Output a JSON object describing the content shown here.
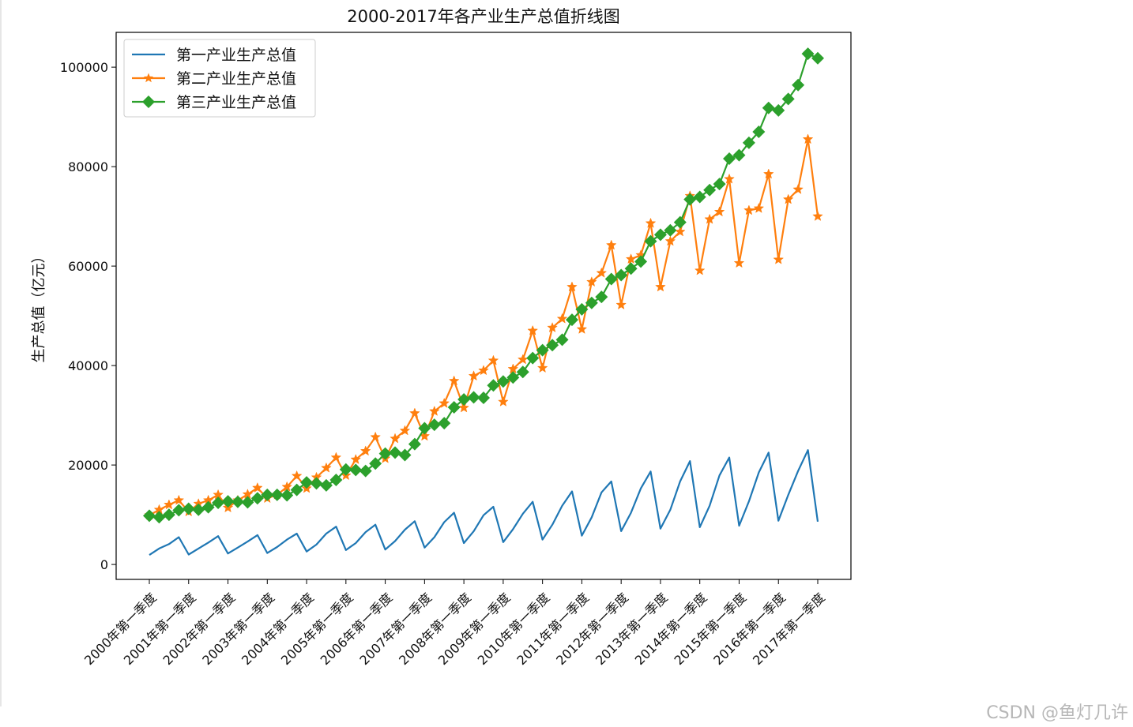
{
  "chart_data": {
    "type": "line",
    "title": "2000-2017年各产业生产总值折线图",
    "xlabel": "",
    "ylabel": "生产总值（亿元）",
    "ylim": [
      -3000,
      107000
    ],
    "yticks": [
      0,
      20000,
      40000,
      60000,
      80000,
      100000
    ],
    "grid": false,
    "legend_position": "top-left",
    "x_tick_labels": [
      "2000年第一季度",
      "2001年第一季度",
      "2002年第一季度",
      "2003年第一季度",
      "2004年第一季度",
      "2005年第一季度",
      "2006年第一季度",
      "2007年第一季度",
      "2008年第一季度",
      "2009年第一季度",
      "2010年第一季度",
      "2011年第一季度",
      "2012年第一季度",
      "2013年第一季度",
      "2014年第一季度",
      "2015年第一季度",
      "2016年第一季度",
      "2017年第一季度"
    ],
    "series": [
      {
        "name": "第一产业生产总值",
        "color": "#1f77b4",
        "marker": "none",
        "values": [
          1900,
          3200,
          4100,
          5500,
          2000,
          3200,
          4400,
          5700,
          2200,
          3400,
          4600,
          5900,
          2300,
          3500,
          5000,
          6200,
          2600,
          4000,
          6200,
          7600,
          2900,
          4300,
          6500,
          8000,
          3000,
          4700,
          7000,
          8700,
          3400,
          5500,
          8500,
          10400,
          4300,
          6700,
          9900,
          11600,
          4500,
          7100,
          10200,
          12600,
          5000,
          8000,
          11800,
          14700,
          5800,
          9500,
          14500,
          16700,
          6700,
          10400,
          15300,
          18700,
          7200,
          11000,
          16700,
          20800,
          7500,
          11800,
          17900,
          21500,
          7800,
          12700,
          18500,
          22500,
          8800,
          14000,
          18800,
          23000,
          8600
        ]
      },
      {
        "name": "第二产业生产总值",
        "color": "#ff7f0e",
        "marker": "star",
        "values": [
          9900,
          11000,
          12000,
          12900,
          10600,
          12200,
          12900,
          14000,
          11400,
          12900,
          14100,
          15400,
          13300,
          14000,
          15600,
          17800,
          15300,
          17500,
          19400,
          21500,
          17900,
          21100,
          22800,
          25600,
          21300,
          25300,
          26900,
          30400,
          25800,
          30800,
          32400,
          36900,
          31500,
          37900,
          39000,
          41000,
          32700,
          39300,
          41200,
          47000,
          39500,
          47600,
          49400,
          55800,
          47300,
          56800,
          58600,
          64200,
          52200,
          61400,
          62200,
          68600,
          55800,
          65000,
          66900,
          74100,
          59100,
          69400,
          70900,
          77500,
          60600,
          71200,
          71600,
          78500,
          61300,
          73400,
          75400,
          85500,
          70000
        ]
      },
      {
        "name": "第三产业生产总值",
        "color": "#2ca02c",
        "marker": "diamond",
        "values": [
          9800,
          9500,
          10000,
          10900,
          11200,
          11000,
          11500,
          12400,
          12700,
          12600,
          12500,
          13300,
          14000,
          14000,
          13900,
          15000,
          16500,
          16300,
          15900,
          17000,
          19100,
          19000,
          18800,
          20300,
          22300,
          22500,
          22000,
          24200,
          27400,
          28100,
          28400,
          31600,
          33200,
          33600,
          33500,
          36000,
          36800,
          37600,
          38700,
          41500,
          43100,
          44100,
          45200,
          49200,
          51300,
          52600,
          53800,
          57400,
          58200,
          59500,
          60900,
          65000,
          66300,
          67200,
          68800,
          73400,
          73900,
          75300,
          76500,
          81600,
          82300,
          84800,
          87000,
          91800,
          91300,
          93600,
          96400,
          102700,
          101800
        ]
      }
    ]
  },
  "watermark": "CSDN @鱼灯几许"
}
